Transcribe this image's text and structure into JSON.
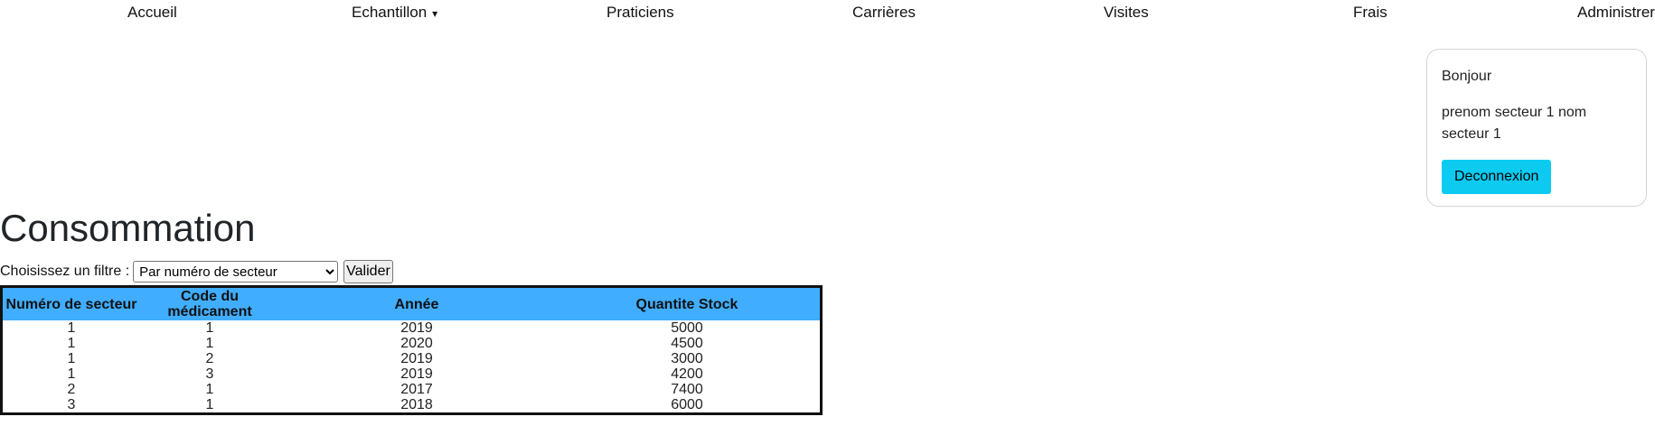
{
  "nav": {
    "items": [
      {
        "label": "Accueil"
      },
      {
        "label": "Echantillon",
        "caret": "▾"
      },
      {
        "label": "Praticiens"
      },
      {
        "label": "Carrières"
      },
      {
        "label": "Visites"
      },
      {
        "label": "Frais"
      },
      {
        "label": "Administrer"
      }
    ]
  },
  "user_card": {
    "greeting": "Bonjour",
    "user_name": "prenom secteur 1 nom secteur 1",
    "logout_label": "Deconnexion"
  },
  "page": {
    "title": "Consommation"
  },
  "filter": {
    "label": "Choisissez un filtre :",
    "selected_option": "Par numéro de secteur",
    "submit_label": "Valider"
  },
  "table": {
    "headers": [
      "Numéro de secteur",
      "Code du médicament",
      "Année",
      "Quantite Stock"
    ],
    "rows": [
      [
        "1",
        "1",
        "2019",
        "5000"
      ],
      [
        "1",
        "1",
        "2020",
        "4500"
      ],
      [
        "1",
        "2",
        "2019",
        "3000"
      ],
      [
        "1",
        "3",
        "2019",
        "4200"
      ],
      [
        "2",
        "1",
        "2017",
        "7400"
      ],
      [
        "3",
        "1",
        "2018",
        "6000"
      ]
    ]
  },
  "colors": {
    "header_bg": "#41adff",
    "logout_bg": "#0dcaf0"
  }
}
